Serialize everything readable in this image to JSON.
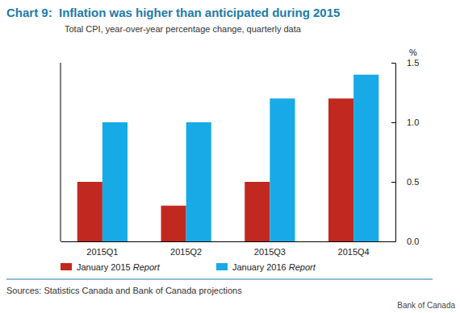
{
  "chart_data": {
    "type": "bar",
    "title": "Chart 9:  Inflation was higher than anticipated during 2015",
    "subtitle": "Total CPI, year-over-year percentage change, quarterly data",
    "ylabel": "%",
    "categories": [
      "2015Q1",
      "2015Q2",
      "2015Q3",
      "2015Q4"
    ],
    "series": [
      {
        "name": "January 2015 Report",
        "color": "#c1281f",
        "values": [
          0.5,
          0.3,
          0.5,
          1.2
        ]
      },
      {
        "name": "January 2016 Report",
        "color": "#17aae6",
        "values": [
          1.0,
          1.0,
          1.2,
          1.4
        ]
      }
    ],
    "ylim": [
      0,
      1.5
    ],
    "yticks": [
      {
        "value": 0,
        "label": "0.0"
      },
      {
        "value": 0.5,
        "label": "0.5"
      },
      {
        "value": 1,
        "label": "1.0"
      },
      {
        "value": 1.5,
        "label": "1.5"
      }
    ],
    "grid": false,
    "legend": "bottom",
    "source": "Sources: Statistics Canada and Bank of Canada projections",
    "credit": "Bank of Canada"
  }
}
